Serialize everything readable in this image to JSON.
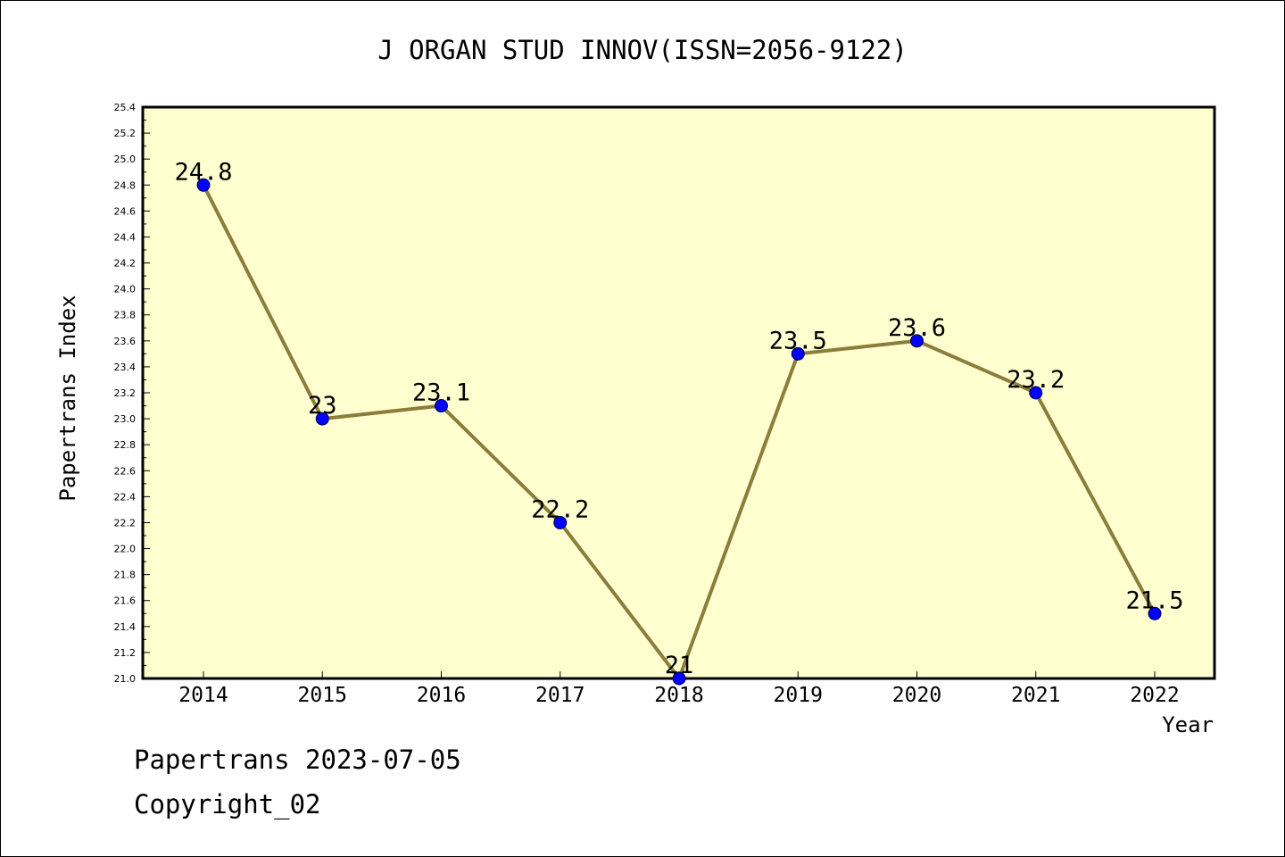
{
  "chart_data": {
    "type": "line",
    "title": "J ORGAN STUD INNOV(ISSN=2056-9122)",
    "xlabel": "Year",
    "ylabel": "Papertrans Index",
    "categories": [
      "2014",
      "2015",
      "2016",
      "2017",
      "2018",
      "2019",
      "2020",
      "2021",
      "2022"
    ],
    "series": [
      {
        "values": [
          24.8,
          23.0,
          23.1,
          22.2,
          21.0,
          23.5,
          23.6,
          23.2,
          21.5
        ],
        "labels": [
          "24.8",
          "23",
          "23.1",
          "22.2",
          "21",
          "23.5",
          "23.6",
          "23.2",
          "21.5"
        ]
      }
    ],
    "ylim": [
      21.0,
      25.4
    ],
    "yticks": [
      "21.0",
      "21.2",
      "21.4",
      "21.6",
      "21.8",
      "22.0",
      "22.2",
      "22.4",
      "22.6",
      "22.8",
      "23.0",
      "23.2",
      "23.4",
      "23.6",
      "23.8",
      "24.0",
      "24.2",
      "24.4",
      "24.6",
      "24.8",
      "25.0",
      "25.2",
      "25.4"
    ],
    "grid": false,
    "colors": {
      "plot_background": "#ffffd0",
      "line": "#8b7d3a",
      "marker": "#0000ff"
    }
  },
  "footer": {
    "line1": "Papertrans 2023-07-05",
    "line2": "Copyright_02"
  }
}
